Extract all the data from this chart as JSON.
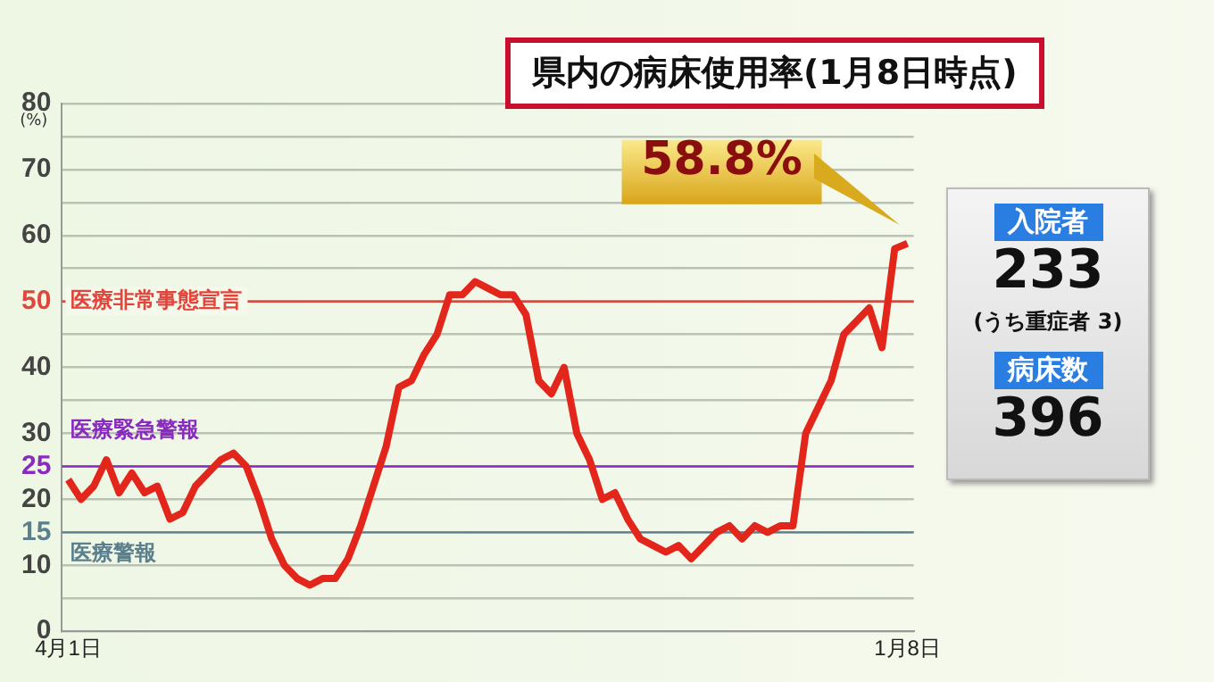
{
  "chart_data": {
    "type": "line",
    "title": "県内の病床使用率(1月8日時点)",
    "ylabel": "(%)",
    "categories": [
      "4月1日",
      null,
      null,
      null,
      null,
      null,
      null,
      null,
      null,
      null,
      null,
      null,
      null,
      null,
      null,
      null,
      null,
      null,
      null,
      null,
      null,
      null,
      null,
      null,
      null,
      null,
      null,
      null,
      null,
      null,
      null,
      null,
      null,
      null,
      null,
      null,
      null,
      null,
      null,
      null,
      null,
      null,
      null,
      null,
      null,
      null,
      null,
      null,
      null,
      null,
      null,
      null,
      null,
      null,
      null,
      null,
      null,
      null,
      null,
      null,
      null,
      null,
      null,
      null,
      null,
      null,
      "1月8日"
    ],
    "series": [
      {
        "color": "#e3261c",
        "values": [
          23,
          20,
          22,
          26,
          21,
          24,
          21,
          22,
          17,
          18,
          22,
          24,
          26,
          27,
          25,
          20,
          14,
          10,
          8,
          7,
          8,
          8,
          11,
          16,
          22,
          28,
          37,
          38,
          42,
          45,
          51,
          51,
          53,
          52,
          51,
          51,
          48,
          38,
          36,
          40,
          30,
          26,
          20,
          21,
          17,
          14,
          13,
          12,
          13,
          11,
          13,
          15,
          16,
          14,
          16,
          15,
          16,
          16,
          30,
          34,
          38,
          45,
          47,
          49,
          43,
          58,
          58.8
        ]
      }
    ],
    "ylim": [
      0,
      80
    ],
    "yticks": [
      0,
      {
        "value": 5,
        "label": null
      },
      10,
      15,
      20,
      25,
      30,
      {
        "value": 35,
        "label": null
      },
      40,
      {
        "value": 45,
        "label": null
      },
      50,
      {
        "value": 55,
        "label": null
      },
      60,
      {
        "value": 65,
        "label": null
      },
      70,
      {
        "value": 75,
        "label": null
      },
      80
    ],
    "grid": "y",
    "legend": false,
    "marker": "none",
    "line_style": "solid",
    "ref_lines": [
      {
        "axis": "y",
        "value": 50,
        "label": "医療非常事態宣言",
        "color": "#e0463c"
      },
      {
        "axis": "y",
        "value": 25,
        "label": "医療緊急警報",
        "color": "#8a2bc0"
      },
      {
        "axis": "y",
        "value": 15,
        "label": "医療警報",
        "color": "#5b7f8c"
      }
    ],
    "annotations": [
      {
        "text": "58.8%",
        "x": "1月8日",
        "y": 58.8
      },
      "入院者",
      "233",
      "(うち重症者 3)",
      "病床数",
      "396"
    ]
  }
}
